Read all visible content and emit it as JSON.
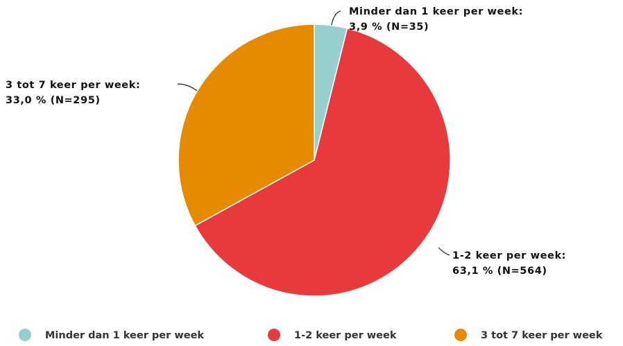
{
  "chart_data": {
    "type": "pie",
    "categories": [
      "Minder dan 1 keer per week",
      "1-2 keer per week",
      "3 tot 7 keer per week"
    ],
    "values": [
      3.9,
      63.1,
      33.0
    ],
    "value_labels": [
      [
        "Minder dan 1 keer per week:",
        "3,9 % (N=35)"
      ],
      [
        "1-2 keer per week:",
        "63,1 % (N=564)"
      ],
      [
        "3 tot 7 keer per week:",
        "33,0 % (N=295)"
      ]
    ],
    "colors": [
      "#97cfcf",
      "#e8393d",
      "#e68a00"
    ],
    "legend": "bottom"
  }
}
